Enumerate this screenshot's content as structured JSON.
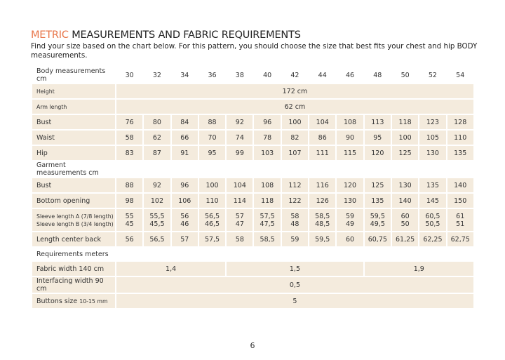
{
  "title": {
    "accent": "METRIC",
    "rest": " MEASUREMENTS AND FABRIC REQUIREMENTS"
  },
  "intro": "Find your size based on the chart below. For this pattern, you should choose the size that best fits your chest and hip BODY measurements.",
  "body_header": "Body measurements cm",
  "sizes": [
    "30",
    "32",
    "34",
    "36",
    "38",
    "40",
    "42",
    "44",
    "46",
    "48",
    "50",
    "52",
    "54"
  ],
  "height": {
    "label": "Height",
    "value": "172 cm"
  },
  "arm": {
    "label": "Arm length",
    "value": "62 cm"
  },
  "body_rows": [
    {
      "label": "Bust",
      "values": [
        "76",
        "80",
        "84",
        "88",
        "92",
        "96",
        "100",
        "104",
        "108",
        "113",
        "118",
        "123",
        "128"
      ]
    },
    {
      "label": "Waist",
      "values": [
        "58",
        "62",
        "66",
        "70",
        "74",
        "78",
        "82",
        "86",
        "90",
        "95",
        "100",
        "105",
        "110"
      ]
    },
    {
      "label": "Hip",
      "values": [
        "83",
        "87",
        "91",
        "95",
        "99",
        "103",
        "107",
        "111",
        "115",
        "120",
        "125",
        "130",
        "135"
      ]
    }
  ],
  "garment_header": "Garment measurements cm",
  "garment_rows": [
    {
      "label": "Bust",
      "values": [
        "88",
        "92",
        "96",
        "100",
        "104",
        "108",
        "112",
        "116",
        "120",
        "125",
        "130",
        "135",
        "140"
      ]
    },
    {
      "label": "Bottom opening",
      "values": [
        "98",
        "102",
        "106",
        "110",
        "114",
        "118",
        "122",
        "126",
        "130",
        "135",
        "140",
        "145",
        "150"
      ]
    }
  ],
  "sleeve": {
    "label_a": "Sleeve length  A (7/8 length)",
    "label_b": "Sleeve length B (3/4 length)",
    "a": [
      "55",
      "55,5",
      "56",
      "56,5",
      "57",
      "57,5",
      "58",
      "58,5",
      "59",
      "59,5",
      "60",
      "60,5",
      "61"
    ],
    "b": [
      "45",
      "45,5",
      "46",
      "46,5",
      "47",
      "47,5",
      "48",
      "48,5",
      "49",
      "49,5",
      "50",
      "50,5",
      "51"
    ]
  },
  "length_back": {
    "label": "Length center back",
    "values": [
      "56",
      "56,5",
      "57",
      "57,5",
      "58",
      "58,5",
      "59",
      "59,5",
      "60",
      "60,75",
      "61,25",
      "62,25",
      "62,75"
    ]
  },
  "req_header": "Requirements meters",
  "fabric": {
    "label": "Fabric width 140 cm",
    "values": [
      "1,4",
      "1,5",
      "1,9"
    ]
  },
  "interfacing": {
    "label": "Interfacing width 90 cm",
    "value": "0,5"
  },
  "buttons": {
    "label": "Buttons size ",
    "label_small": "10-15 mm",
    "value": "5"
  },
  "page_number": "6"
}
